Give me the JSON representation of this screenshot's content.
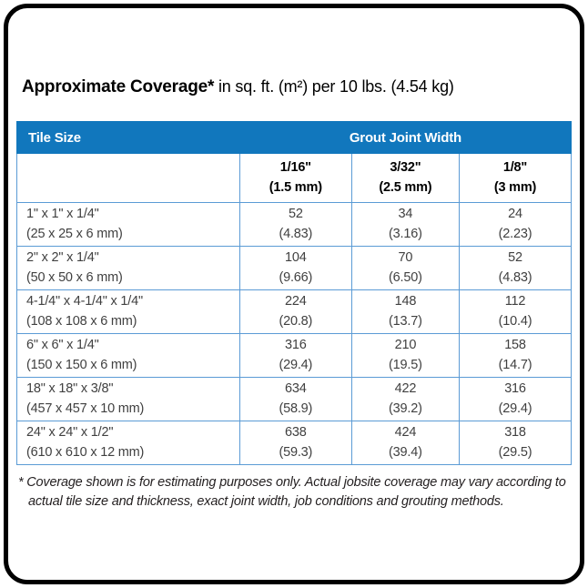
{
  "title": {
    "bold": "Approximate Coverage*",
    "rest": " in sq. ft. (m²) per 10 lbs. (4.54 kg)"
  },
  "table": {
    "tile_size_header": "Tile Size",
    "grout_header": "Grout Joint Width",
    "columns": [
      {
        "width": "1/16\"",
        "metric": "(1.5 mm)"
      },
      {
        "width": "3/32\"",
        "metric": "(2.5 mm)"
      },
      {
        "width": "1/8\"",
        "metric": "(3 mm)"
      }
    ],
    "rows": [
      {
        "size": "1\" x 1\" x 1/4\"",
        "metric": "(25 x 25 x 6 mm)",
        "values": [
          {
            "sqft": "52",
            "m2": "(4.83)"
          },
          {
            "sqft": "34",
            "m2": "(3.16)"
          },
          {
            "sqft": "24",
            "m2": "(2.23)"
          }
        ]
      },
      {
        "size": "2\" x 2\" x 1/4\"",
        "metric": "(50 x 50 x 6 mm)",
        "values": [
          {
            "sqft": "104",
            "m2": "(9.66)"
          },
          {
            "sqft": "70",
            "m2": "(6.50)"
          },
          {
            "sqft": "52",
            "m2": "(4.83)"
          }
        ]
      },
      {
        "size": "4-1/4\" x 4-1/4\" x 1/4\"",
        "metric": "(108 x 108 x 6 mm)",
        "values": [
          {
            "sqft": "224",
            "m2": "(20.8)"
          },
          {
            "sqft": "148",
            "m2": "(13.7)"
          },
          {
            "sqft": "112",
            "m2": "(10.4)"
          }
        ]
      },
      {
        "size": "6\" x 6\" x 1/4\"",
        "metric": "(150 x 150 x 6 mm)",
        "values": [
          {
            "sqft": "316",
            "m2": "(29.4)"
          },
          {
            "sqft": "210",
            "m2": "(19.5)"
          },
          {
            "sqft": "158",
            "m2": "(14.7)"
          }
        ]
      },
      {
        "size": "18\" x 18\" x 3/8\"",
        "metric": "(457 x 457 x 10 mm)",
        "values": [
          {
            "sqft": "634",
            "m2": "(58.9)"
          },
          {
            "sqft": "422",
            "m2": "(39.2)"
          },
          {
            "sqft": "316",
            "m2": "(29.4)"
          }
        ]
      },
      {
        "size": "24\" x 24\" x 1/2\"",
        "metric": "(610 x 610 x 12 mm)",
        "values": [
          {
            "sqft": "638",
            "m2": "(59.3)"
          },
          {
            "sqft": "424",
            "m2": "(39.4)"
          },
          {
            "sqft": "318",
            "m2": "(29.5)"
          }
        ]
      }
    ]
  },
  "footnote": "* Coverage shown is for estimating purposes only. Actual jobsite coverage may vary according to actual tile size and thickness, exact joint width, job conditions and grouting methods.",
  "colors": {
    "header_blue": "#1177BD",
    "grid_blue": "#5B9BD5",
    "text_dark": "#231F20",
    "value_gray": "#404040"
  }
}
